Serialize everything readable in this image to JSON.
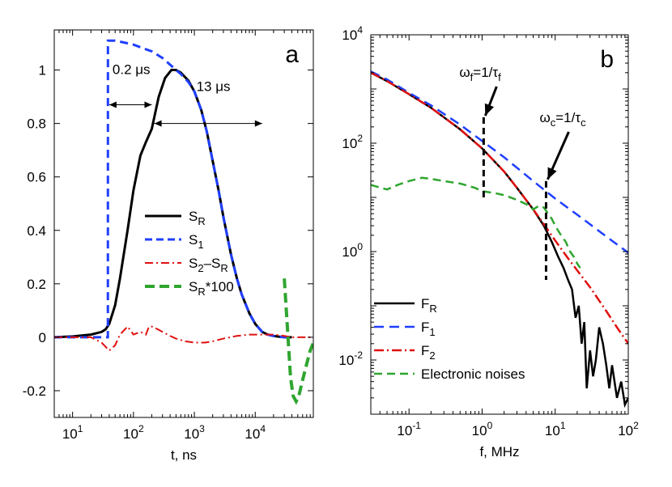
{
  "chart_data": [
    {
      "panel": "a",
      "type": "line",
      "xscale": "log",
      "yscale": "linear",
      "xlabel": "t, ns",
      "ylabel": "",
      "xlim": [
        5,
        90000
      ],
      "ylim": [
        -0.3,
        1.15
      ],
      "x_ticks": [
        {
          "value": 10,
          "base": "10",
          "exp": "1"
        },
        {
          "value": 100,
          "base": "10",
          "exp": "2"
        },
        {
          "value": 1000,
          "base": "10",
          "exp": "3"
        },
        {
          "value": 10000,
          "base": "10",
          "exp": "4"
        }
      ],
      "y_ticks": [
        {
          "value": -0.2,
          "label": "-0.2"
        },
        {
          "value": 0,
          "label": "0"
        },
        {
          "value": 0.2,
          "label": "0.2"
        },
        {
          "value": 0.4,
          "label": "0.4"
        },
        {
          "value": 0.6,
          "label": "0.6"
        },
        {
          "value": 0.8,
          "label": "0.8"
        },
        {
          "value": 1,
          "label": "1"
        }
      ],
      "annotations": [
        {
          "text": "0.2 μs",
          "x": 40,
          "y": 0.87,
          "x2": 200
        },
        {
          "text": "13 μs",
          "x": 220,
          "y": 0.8,
          "x2": 13000
        }
      ],
      "series": [
        {
          "name": "S_R",
          "color": "#000000",
          "dash": "",
          "width": 3,
          "x": [
            5,
            10,
            20,
            30,
            35,
            40,
            50,
            60,
            80,
            100,
            130,
            160,
            200,
            260,
            330,
            420,
            500,
            600,
            800,
            1000,
            1300,
            1600,
            2000,
            2500,
            3000,
            4000,
            5000,
            6000,
            8000,
            10000,
            13000,
            16000,
            20000,
            25000,
            30000,
            40000
          ],
          "y": [
            0,
            0.003,
            0.01,
            0.02,
            0.03,
            0.05,
            0.12,
            0.22,
            0.4,
            0.55,
            0.68,
            0.73,
            0.78,
            0.9,
            0.97,
            1.0,
            1.0,
            0.99,
            0.96,
            0.92,
            0.85,
            0.77,
            0.66,
            0.55,
            0.45,
            0.31,
            0.22,
            0.16,
            0.09,
            0.05,
            0.02,
            0.01,
            0.005,
            0.002,
            0,
            0
          ]
        },
        {
          "name": "S_1",
          "color": "#1f3fff",
          "dash": "10,6",
          "width": 3,
          "x": [
            5,
            10,
            20,
            30,
            38,
            38.1,
            50,
            80,
            100,
            150,
            200,
            300,
            400,
            500,
            600,
            800,
            1000,
            1300,
            1600,
            2000,
            2500,
            3000,
            4000,
            5000,
            6000,
            8000,
            10000,
            13000,
            16000,
            20000,
            25000,
            30000,
            40000
          ],
          "y": [
            0,
            0,
            0,
            0,
            0,
            1.11,
            1.11,
            1.1,
            1.095,
            1.08,
            1.07,
            1.045,
            1.02,
            1.0,
            0.985,
            0.955,
            0.92,
            0.85,
            0.77,
            0.66,
            0.55,
            0.45,
            0.31,
            0.22,
            0.16,
            0.09,
            0.05,
            0.02,
            0.01,
            0.005,
            0.002,
            0,
            0
          ]
        },
        {
          "name": "S_2-S_R",
          "color": "#e01010",
          "dash": "10,4,2,4",
          "width": 2,
          "x": [
            5,
            20,
            30,
            40,
            50,
            60,
            80,
            100,
            130,
            160,
            180,
            200,
            250,
            300,
            400,
            500,
            700,
            1000,
            1500,
            2000,
            3000,
            5000,
            8000,
            12000,
            20000,
            30000,
            40000,
            60000,
            90000
          ],
          "y": [
            0,
            0,
            -0.02,
            -0.05,
            -0.03,
            0.01,
            0.04,
            0.01,
            0.02,
            0.01,
            0.04,
            0.04,
            0.03,
            0.02,
            0.005,
            -0.005,
            -0.015,
            -0.02,
            -0.02,
            -0.015,
            -0.005,
            0.005,
            0.01,
            0.01,
            0.01,
            0.005,
            0,
            0,
            0
          ]
        },
        {
          "name": "S_R*100",
          "color": "#2fa52f",
          "dash": "12,6",
          "width": 4,
          "x": [
            30000,
            32000,
            35000,
            38000,
            42000,
            47000,
            52000,
            60000,
            70000,
            80000,
            90000
          ],
          "y": [
            0.22,
            0.12,
            -0.02,
            -0.15,
            -0.22,
            -0.24,
            -0.22,
            -0.16,
            -0.1,
            -0.05,
            -0.02
          ]
        }
      ],
      "legend": {
        "position": "center-right",
        "entries": [
          {
            "base": "S",
            "sub": "R",
            "mid": "",
            "base2": "",
            "sub2": "",
            "tail": ""
          },
          {
            "base": "S",
            "sub": "1",
            "mid": "",
            "base2": "",
            "sub2": "",
            "tail": ""
          },
          {
            "base": "S",
            "sub": "2",
            "mid": "–",
            "base2": "S",
            "sub2": "R",
            "tail": ""
          },
          {
            "base": "S",
            "sub": "R",
            "mid": "",
            "base2": "",
            "sub2": "",
            "tail": "*100"
          }
        ]
      },
      "panel_label": "a"
    },
    {
      "panel": "b",
      "type": "line",
      "xscale": "log",
      "yscale": "log",
      "xlabel": "f, MHz",
      "ylabel": "",
      "xlim": [
        0.03,
        100
      ],
      "ylim": [
        0.001,
        10000
      ],
      "x_ticks": [
        {
          "value": 0.1,
          "base": "10",
          "exp": "-1"
        },
        {
          "value": 1,
          "base": "10",
          "exp": "0"
        },
        {
          "value": 10,
          "base": "10",
          "exp": "1"
        },
        {
          "value": 100,
          "base": "10",
          "exp": "2"
        }
      ],
      "y_ticks": [
        {
          "value": 0.01,
          "base": "10",
          "exp": "-2"
        },
        {
          "value": 1,
          "base": "10",
          "exp": "0"
        },
        {
          "value": 100,
          "base": "10",
          "exp": "2"
        },
        {
          "value": 10000,
          "base": "10",
          "exp": "4"
        }
      ],
      "annotations": [
        {
          "text_main": "ω",
          "sub1": "f",
          "text_mid": "=1/τ",
          "sub2": "f",
          "x": 1.05,
          "y_low": 10,
          "y_high": 300
        },
        {
          "text_main": "ω",
          "sub1": "c",
          "text_mid": "=1/τ",
          "sub2": "c",
          "x": 7.5,
          "y_low": 0.3,
          "y_high": 20
        }
      ],
      "series": [
        {
          "name": "F_R",
          "color": "#000000",
          "dash": "",
          "width": 2.5,
          "x": [
            0.03,
            0.05,
            0.1,
            0.2,
            0.3,
            0.5,
            1,
            2,
            3,
            5,
            7,
            9,
            11,
            13,
            15,
            17,
            19,
            21,
            23,
            25,
            27,
            30,
            33,
            36,
            40,
            45,
            50,
            55,
            60,
            70,
            80,
            90,
            100
          ],
          "y": [
            2000,
            1400,
            800,
            450,
            300,
            180,
            80,
            30,
            15,
            6,
            3,
            1.5,
            0.8,
            0.5,
            0.3,
            0.2,
            0.06,
            0.1,
            0.02,
            0.05,
            0.003,
            0.015,
            0.005,
            0.01,
            0.04,
            0.02,
            0.008,
            0.003,
            0.008,
            0.002,
            0.004,
            0.0015,
            0.002
          ]
        },
        {
          "name": "F_1",
          "color": "#1f3fff",
          "dash": "12,7",
          "width": 2.5,
          "x": [
            0.03,
            0.05,
            0.1,
            0.2,
            0.5,
            1,
            2,
            5,
            10,
            20,
            50,
            100
          ],
          "y": [
            2100,
            1500,
            850,
            500,
            220,
            110,
            55,
            20,
            9.5,
            4.8,
            1.9,
            0.95
          ]
        },
        {
          "name": "F_2",
          "color": "#e01010",
          "dash": "12,4,2,4",
          "width": 2.5,
          "x": [
            0.03,
            0.05,
            0.1,
            0.2,
            0.3,
            0.5,
            1,
            2,
            3,
            5,
            7,
            10,
            15,
            20,
            30,
            50,
            70,
            100
          ],
          "y": [
            2000,
            1400,
            800,
            450,
            300,
            180,
            80,
            30,
            15,
            6,
            3.2,
            1.6,
            0.75,
            0.45,
            0.22,
            0.08,
            0.04,
            0.02
          ]
        },
        {
          "name": "Electronic noises",
          "color": "#2fa52f",
          "dash": "10,6",
          "width": 2.5,
          "x": [
            0.03,
            0.05,
            0.07,
            0.1,
            0.15,
            0.2,
            0.3,
            0.5,
            0.8,
            1,
            1.5,
            2,
            3,
            4,
            5,
            6,
            7,
            8,
            9,
            10,
            12,
            14,
            16,
            18,
            20,
            22
          ],
          "y": [
            17,
            14,
            17,
            20,
            23,
            22,
            20,
            18,
            15,
            13,
            12,
            11,
            9,
            7.5,
            6,
            7,
            6.5,
            5,
            4,
            3,
            2,
            1.5,
            1.0,
            0.8,
            0.6,
            0.5
          ]
        }
      ],
      "legend": {
        "position": "bottom-left",
        "entries": [
          {
            "base": "F",
            "sub": "R"
          },
          {
            "base": "F",
            "sub": "1"
          },
          {
            "base": "F",
            "sub": "2"
          },
          {
            "base": "Electronic noises",
            "sub": ""
          }
        ]
      },
      "panel_label": "b"
    }
  ]
}
